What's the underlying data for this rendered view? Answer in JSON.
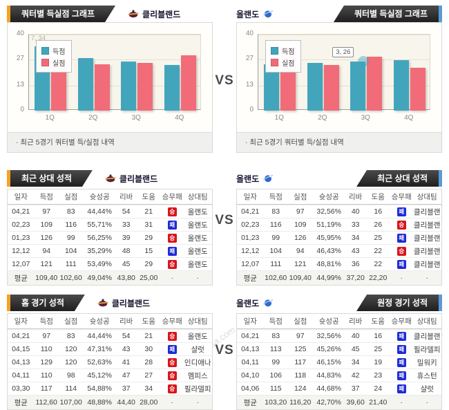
{
  "page": {
    "vs": "VS"
  },
  "watermark": {
    "kr": "토토박사",
    "en": "totobaksa.com"
  },
  "banners": {
    "chart_left": {
      "title": "쿼터별 득실점 그래프",
      "team": "클리블랜드"
    },
    "chart_right": {
      "title": "쿼터별 득실점 그래프",
      "team": "올랜도"
    },
    "h2h_left": {
      "title": "최근 상대 성적",
      "team": "클리블랜드"
    },
    "h2h_right": {
      "title": "최근 상대 성적",
      "team": "올랜도"
    },
    "home_left": {
      "title": "홈 경기 성적",
      "team": "클리블랜드"
    },
    "away_right": {
      "title": "원정 경기 성적",
      "team": "올랜도"
    }
  },
  "chart_footer": "· 최근 5경기 쿼터별 득/실점 내역",
  "chart_data": [
    {
      "type": "bar",
      "title": "쿼터별 득실점 그래프",
      "team": "클리블랜드",
      "categories": [
        "1Q",
        "2Q",
        "3Q",
        "4Q"
      ],
      "series": [
        {
          "name": "득점",
          "color": "#43a5bc",
          "values": [
            34,
            27.5,
            26,
            24
          ]
        },
        {
          "name": "실점",
          "color": "#f16c78",
          "values": [
            27.5,
            24.5,
            25,
            29
          ]
        }
      ],
      "ylim": [
        0,
        40
      ],
      "yticks": [
        0,
        13,
        27,
        40
      ],
      "legend_position": "top-left",
      "grid": true,
      "annotation": {
        "text": "7, 34",
        "style": "faint",
        "position": "top-left"
      }
    },
    {
      "type": "bar",
      "title": "쿼터별 득실점 그래프",
      "team": "올랜도",
      "categories": [
        "1Q",
        "2Q",
        "3Q",
        "4Q"
      ],
      "series": [
        {
          "name": "득점",
          "color": "#43a5bc",
          "values": [
            24.5,
            25,
            26,
            26.5
          ]
        },
        {
          "name": "실점",
          "color": "#f16c78",
          "values": [
            33,
            24,
            28.5,
            22.5
          ]
        }
      ],
      "ylim": [
        0,
        40
      ],
      "yticks": [
        0,
        13,
        27,
        40
      ],
      "legend_position": "top-left",
      "grid": true,
      "tooltip": {
        "text": "3, 26",
        "category_index": 2,
        "series_index": 0
      }
    }
  ],
  "table_columns": [
    "일자",
    "득점",
    "실점",
    "슛성공",
    "리바",
    "도움",
    "승무패",
    "상대팀"
  ],
  "table_col_keys": [
    "date",
    "points-for",
    "points-against",
    "fg-pct",
    "rebounds",
    "assists",
    "result",
    "opponent"
  ],
  "result_badges": {
    "승": "win",
    "패": "loss"
  },
  "result_colors": {
    "win": "#d8151c",
    "loss": "#1f2bd5"
  },
  "tables": {
    "h2h_left": {
      "rows": [
        [
          "04,21",
          "97",
          "83",
          "44,44%",
          "54",
          "21",
          "승",
          "올랜도"
        ],
        [
          "02,23",
          "109",
          "116",
          "55,71%",
          "33",
          "31",
          "패",
          "올랜도"
        ],
        [
          "01,23",
          "126",
          "99",
          "56,25%",
          "39",
          "29",
          "승",
          "올랜도"
        ],
        [
          "12,12",
          "94",
          "104",
          "35,29%",
          "48",
          "15",
          "패",
          "올랜도"
        ],
        [
          "12,07",
          "121",
          "111",
          "53,49%",
          "45",
          "29",
          "승",
          "올랜도"
        ]
      ],
      "avg": [
        "평균",
        "109,40",
        "102,60",
        "49,04%",
        "43,80",
        "25,00",
        "·",
        "·"
      ]
    },
    "h2h_right": {
      "rows": [
        [
          "04,21",
          "83",
          "97",
          "32,56%",
          "40",
          "16",
          "패",
          "클리블랜"
        ],
        [
          "02,23",
          "116",
          "109",
          "51,19%",
          "33",
          "26",
          "승",
          "클리블랜"
        ],
        [
          "01,23",
          "99",
          "126",
          "45,95%",
          "34",
          "25",
          "패",
          "클리블랜"
        ],
        [
          "12,12",
          "104",
          "94",
          "46,43%",
          "43",
          "22",
          "승",
          "클리블랜"
        ],
        [
          "12,07",
          "111",
          "121",
          "48,81%",
          "36",
          "22",
          "패",
          "클리블랜"
        ]
      ],
      "avg": [
        "평균",
        "102,60",
        "109,40",
        "44,99%",
        "37,20",
        "22,20",
        "·",
        "·"
      ]
    },
    "home_left": {
      "rows": [
        [
          "04,21",
          "97",
          "83",
          "44,44%",
          "54",
          "21",
          "승",
          "올랜도"
        ],
        [
          "04,15",
          "110",
          "120",
          "47,31%",
          "43",
          "30",
          "패",
          "샬럿"
        ],
        [
          "04,13",
          "129",
          "120",
          "52,63%",
          "41",
          "28",
          "승",
          "인디애나"
        ],
        [
          "04,11",
          "110",
          "98",
          "45,12%",
          "47",
          "27",
          "승",
          "멤피스"
        ],
        [
          "03,30",
          "117",
          "114",
          "54,88%",
          "37",
          "34",
          "승",
          "필라델피"
        ]
      ],
      "avg": [
        "평균",
        "112,60",
        "107,00",
        "48,88%",
        "44,40",
        "28,00",
        "·",
        "·"
      ]
    },
    "away_right": {
      "rows": [
        [
          "04,21",
          "83",
          "97",
          "32,56%",
          "40",
          "16",
          "패",
          "클리블랜"
        ],
        [
          "04,13",
          "113",
          "125",
          "45,26%",
          "45",
          "25",
          "패",
          "필라델피"
        ],
        [
          "04,11",
          "99",
          "117",
          "46,15%",
          "34",
          "19",
          "패",
          "밀워키"
        ],
        [
          "04,10",
          "106",
          "118",
          "44,83%",
          "42",
          "23",
          "패",
          "휴스턴"
        ],
        [
          "04,06",
          "115",
          "124",
          "44,68%",
          "37",
          "24",
          "패",
          "샬럿"
        ]
      ],
      "avg": [
        "평균",
        "103,20",
        "116,20",
        "42,70%",
        "39,60",
        "21,40",
        "·",
        "·"
      ]
    }
  }
}
